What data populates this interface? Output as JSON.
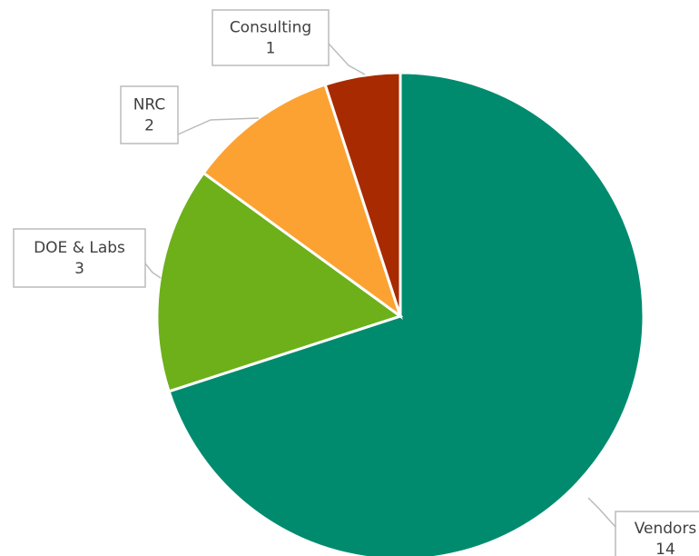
{
  "chart_data": {
    "type": "pie",
    "categories": [
      "Vendors",
      "DOE & Labs",
      "NRC",
      "Consulting"
    ],
    "values": [
      14,
      3,
      2,
      1
    ],
    "colors": [
      "#008b6e",
      "#6db01a",
      "#fca232",
      "#a82a00"
    ]
  }
}
